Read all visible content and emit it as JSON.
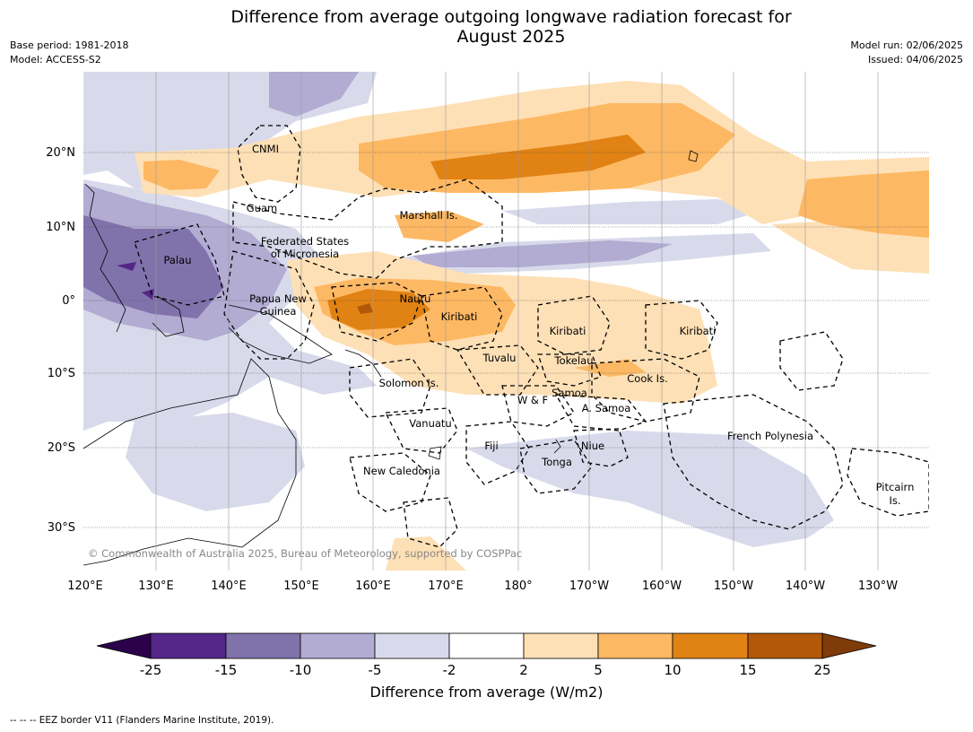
{
  "title": {
    "line1": "Difference from average outgoing longwave radiation forecast for",
    "line2": "August 2025"
  },
  "meta": {
    "base_period": "Base period: 1981-2018",
    "model": "Model: ACCESS-S2",
    "model_run": "Model run: 02/06/2025",
    "issued": "Issued: 04/06/2025"
  },
  "copyright": "© Commonwealth of Australia 2025, Bureau of Meteorology, supported by COSPPac",
  "lon_ticks": [
    "120°E",
    "130°E",
    "140°E",
    "150°E",
    "160°E",
    "170°E",
    "180°",
    "170°W",
    "160°W",
    "150°W",
    "140°W",
    "130°W"
  ],
  "lat_ticks": [
    "20°N",
    "10°N",
    "0°",
    "10°S",
    "20°S",
    "30°S"
  ],
  "places": {
    "cnmi": "CNMI",
    "guam": "Guam",
    "fsm1": "Federated States",
    "fsm2": "of Micronesia",
    "marshall": "Marshall Is.",
    "palau": "Palau",
    "png1": "Papua New",
    "png2": "Guinea",
    "nauru": "Nauru",
    "kiribati_w": "Kiribati",
    "kiribati_c": "Kiribati",
    "kiribati_e": "Kiribati",
    "tuvalu": "Tuvalu",
    "tokelau": "Tokelau",
    "cook": "Cook Is.",
    "solomon": "Solomon Is.",
    "wf": "W & F",
    "samoa": "Samoa",
    "asamoa": "A. Samoa",
    "vanuatu": "Vanuatu",
    "fiji": "Fiji",
    "niue": "Niue",
    "tonga": "Tonga",
    "newcal": "New Caledonia",
    "frpoly": "French Polynesia",
    "pitcairn1": "Pitcairn",
    "pitcairn2": "Is."
  },
  "colorbar": {
    "ticks": [
      "-25",
      "-15",
      "-10",
      "-5",
      "-2",
      "2",
      "5",
      "10",
      "15",
      "25"
    ],
    "colors": {
      "lt_m25": "#2d004b",
      "m25_m15": "#542788",
      "m15_m10": "#8073ac",
      "m10_m5": "#b2abd2",
      "m5_m2": "#d8daeb",
      "m2_2": "#ffffff",
      "p2_5": "#fee0b6",
      "p5_10": "#fdb863",
      "p10_15": "#e08214",
      "p15_25": "#b35806",
      "gt_25": "#7f3b08"
    },
    "label": "Difference from average (W/m2)"
  },
  "footnote": "--  --  -- EEZ border V11 (Flanders Marine Institute, 2019)."
}
